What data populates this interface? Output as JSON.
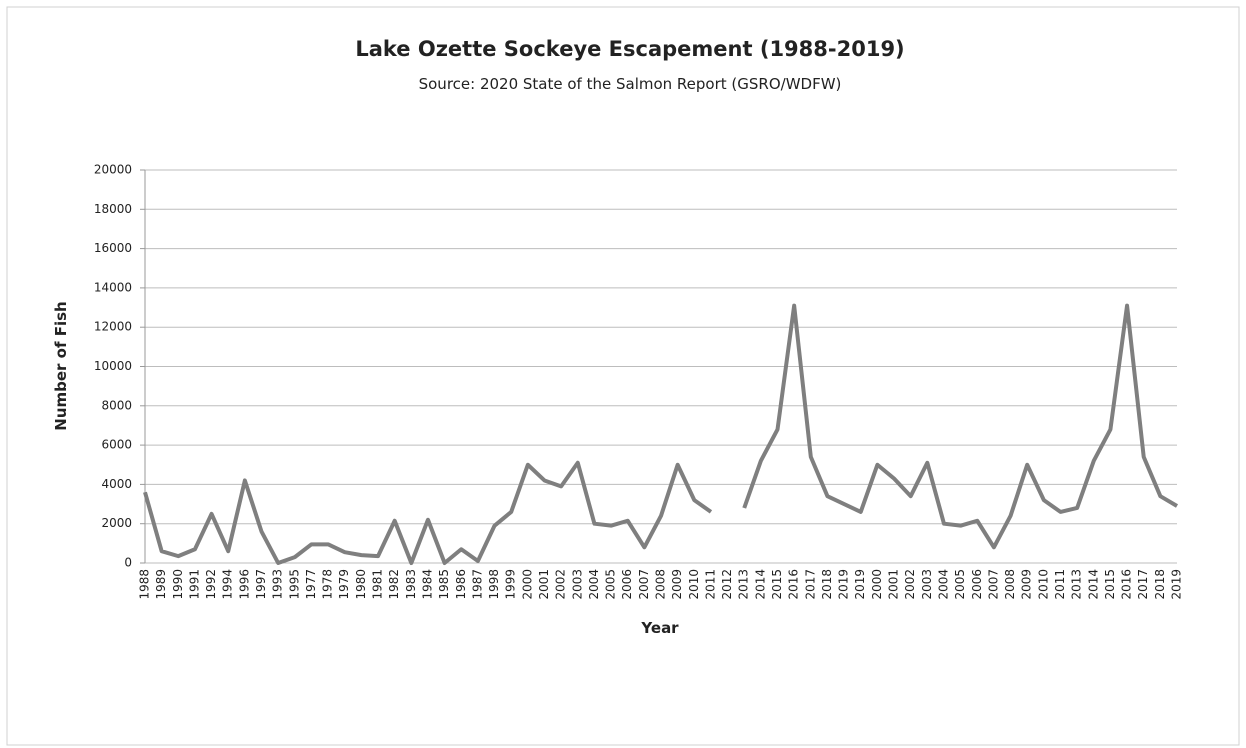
{
  "chart_data": {
    "type": "line",
    "title": "Lake Ozette Sockeye Escapement (1988-2019)",
    "subtitle": "Source: 2020 State of the Salmon Report (GSRO/WDFW)",
    "x_label": "Year",
    "y_label": "Number of Fish",
    "categories": [
      "1988",
      "1989",
      "1990",
      "1991",
      "1992",
      "1994",
      "1996",
      "1997",
      "1993",
      "1995",
      "1977",
      "1978",
      "1979",
      "1980",
      "1981",
      "1982",
      "1983",
      "1984",
      "1985",
      "1986",
      "1987",
      "1998",
      "1999",
      "2000",
      "2001",
      "2002",
      "2003",
      "2004",
      "2005",
      "2006",
      "2007",
      "2008",
      "2009",
      "2010",
      "2011",
      "2012",
      "2013",
      "2014",
      "2015",
      "2016",
      "2017",
      "2018",
      "2019",
      "2019",
      "2000",
      "2001",
      "2002",
      "2003",
      "2004",
      "2005",
      "2006",
      "2007",
      "2008",
      "2009",
      "2010",
      "2011",
      "2013",
      "2014",
      "2015",
      "2016",
      "2017",
      "2018",
      "2019"
    ],
    "series": [
      {
        "name": "Number of Fish",
        "color": "#7f7f7f",
        "values": [
          3600,
          600,
          350,
          700,
          2500,
          600,
          4200,
          1600,
          0,
          300,
          950,
          950,
          550,
          400,
          350,
          2150,
          0,
          2200,
          0,
          700,
          100,
          1900,
          2600,
          5000,
          4200,
          3900,
          5100,
          2000,
          1900,
          2150,
          800,
          2400,
          5000,
          3200,
          2600,
          null,
          2800,
          5200,
          6800,
          13100,
          5400,
          3400,
          3000,
          2600,
          5000,
          4300,
          3400,
          5100,
          2000,
          1900,
          2150,
          800,
          2400,
          5000,
          3200,
          2600,
          2800,
          5200,
          6800,
          13100,
          5400,
          3400,
          2900
        ]
      }
    ],
    "ylim": [
      0,
      20000
    ],
    "yticks": [
      0,
      2000,
      4000,
      6000,
      8000,
      10000,
      12000,
      14000,
      16000,
      18000,
      20000
    ],
    "grid": true
  }
}
